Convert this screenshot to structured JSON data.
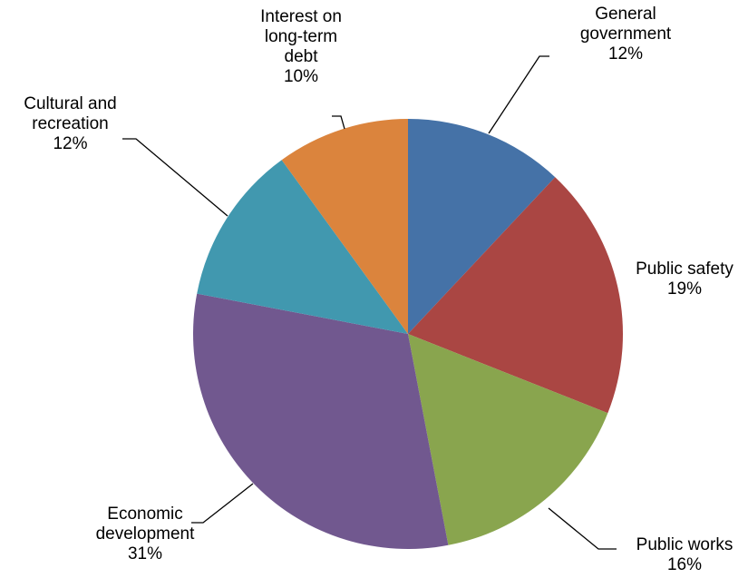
{
  "chart_data": {
    "type": "pie",
    "title": "",
    "slices": [
      {
        "name": "General government",
        "label_lines": [
          "General",
          "government"
        ],
        "value": 12,
        "value_label": "12%",
        "color": "#4572A7"
      },
      {
        "name": "Public safety",
        "label_lines": [
          "Public safety"
        ],
        "value": 19,
        "value_label": "19%",
        "color": "#AA4643"
      },
      {
        "name": "Public works",
        "label_lines": [
          "Public works"
        ],
        "value": 16,
        "value_label": "16%",
        "color": "#89A54E"
      },
      {
        "name": "Economic development",
        "label_lines": [
          "Economic",
          "development"
        ],
        "value": 31,
        "value_label": "31%",
        "color": "#71588F"
      },
      {
        "name": "Cultural and recreation",
        "label_lines": [
          "Cultural and",
          "recreation"
        ],
        "value": 12,
        "value_label": "12%",
        "color": "#4198AF"
      },
      {
        "name": "Interest on long-term debt",
        "label_lines": [
          "Interest on",
          "long-term",
          "debt"
        ],
        "value": 10,
        "value_label": "10%",
        "color": "#DB843D"
      }
    ]
  }
}
